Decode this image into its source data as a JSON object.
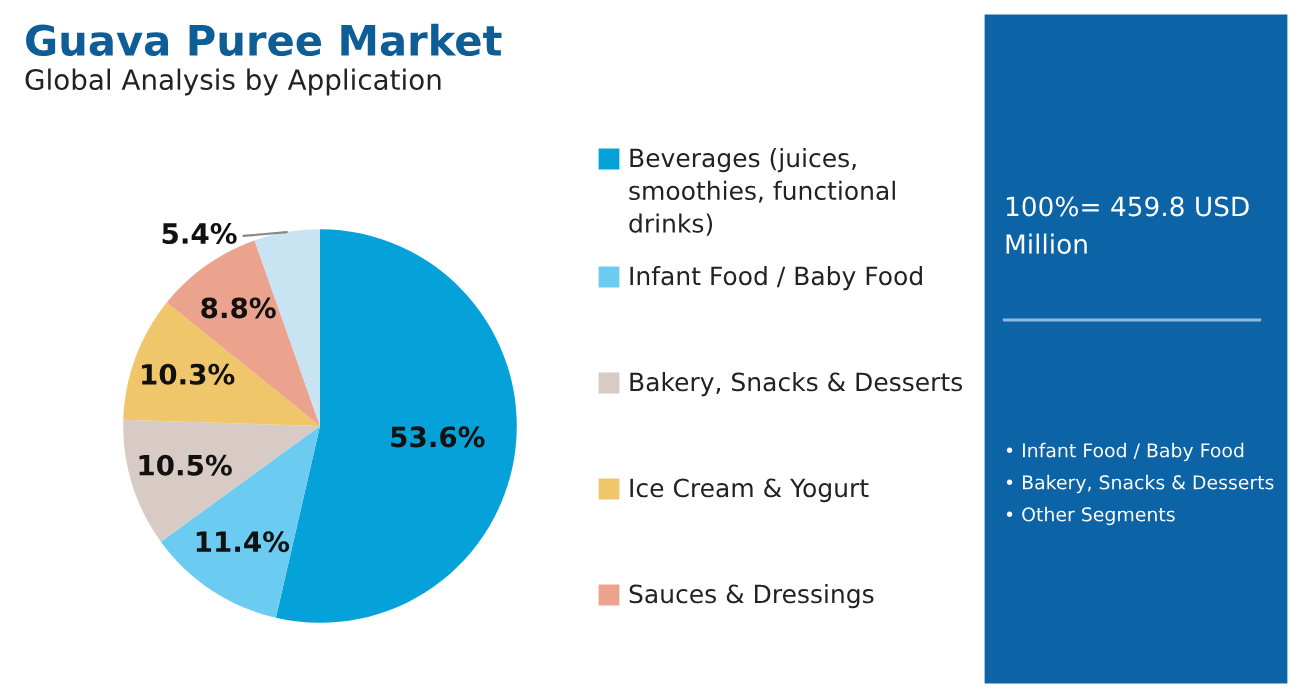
{
  "chart_data": {
    "type": "pie",
    "title": "Guava Puree Market",
    "subtitle": "Global Analysis by Application",
    "categories": [
      "Beverages (juices, smoothies, functional drinks)",
      "Infant Food / Baby Food",
      "Bakery, Snacks & Desserts",
      "Ice Cream & Yogurt",
      "Sauces & Dressings",
      null
    ],
    "values": [
      53.6,
      11.4,
      10.5,
      10.3,
      8.8,
      5.4
    ],
    "colors": [
      "#05a2d9",
      "#6ccbf0",
      "#d8cbc6",
      "#efc669",
      "#eca38d",
      "#c8e3f2"
    ],
    "value_labels": [
      "53.6%",
      "11.4%",
      "10.5%",
      "10.3%",
      "8.8%",
      "5.4%"
    ],
    "legend": "right",
    "annotations": [
      "100%= 459.8 USD Million",
      "• Infant Food / Baby Food",
      "• Bakery, Snacks & Desserts",
      "• Other Segments"
    ]
  }
}
